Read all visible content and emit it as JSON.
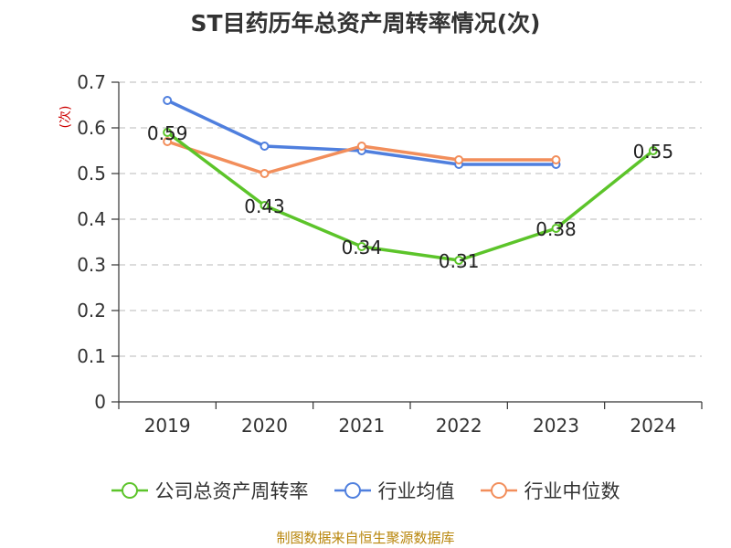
{
  "title": "ST目药历年总资产周转率情况(次)",
  "footer": "制图数据来自恒生聚源数据库",
  "chart_data": {
    "type": "line",
    "title": "ST目药历年总资产周转率情况(次)",
    "ylabel": "(次)",
    "xlabel": "",
    "categories": [
      "2019",
      "2020",
      "2021",
      "2022",
      "2023",
      "2024"
    ],
    "ylim": [
      0,
      0.7
    ],
    "yticks": [
      0,
      0.1,
      0.2,
      0.3,
      0.4,
      0.5,
      0.6,
      0.7
    ],
    "ytick_labels": [
      "0",
      "0.1",
      "0.2",
      "0.3",
      "0.4",
      "0.5",
      "0.6",
      "0.7"
    ],
    "grid": true,
    "legend_position": "bottom",
    "series": [
      {
        "name": "公司总资产周转率",
        "color": "#5cc42a",
        "values": [
          0.59,
          0.43,
          0.34,
          0.31,
          0.38,
          0.55
        ],
        "labels": [
          "0.59",
          "0.43",
          "0.34",
          "0.31",
          "0.38",
          "0.55"
        ],
        "show_labels": true
      },
      {
        "name": "行业均值",
        "color": "#4f7fde",
        "values": [
          0.66,
          0.56,
          0.55,
          0.52,
          0.52,
          null
        ],
        "show_labels": false
      },
      {
        "name": "行业中位数",
        "color": "#f28e5b",
        "values": [
          0.57,
          0.5,
          0.56,
          0.53,
          0.53,
          null
        ],
        "show_labels": false
      }
    ]
  }
}
